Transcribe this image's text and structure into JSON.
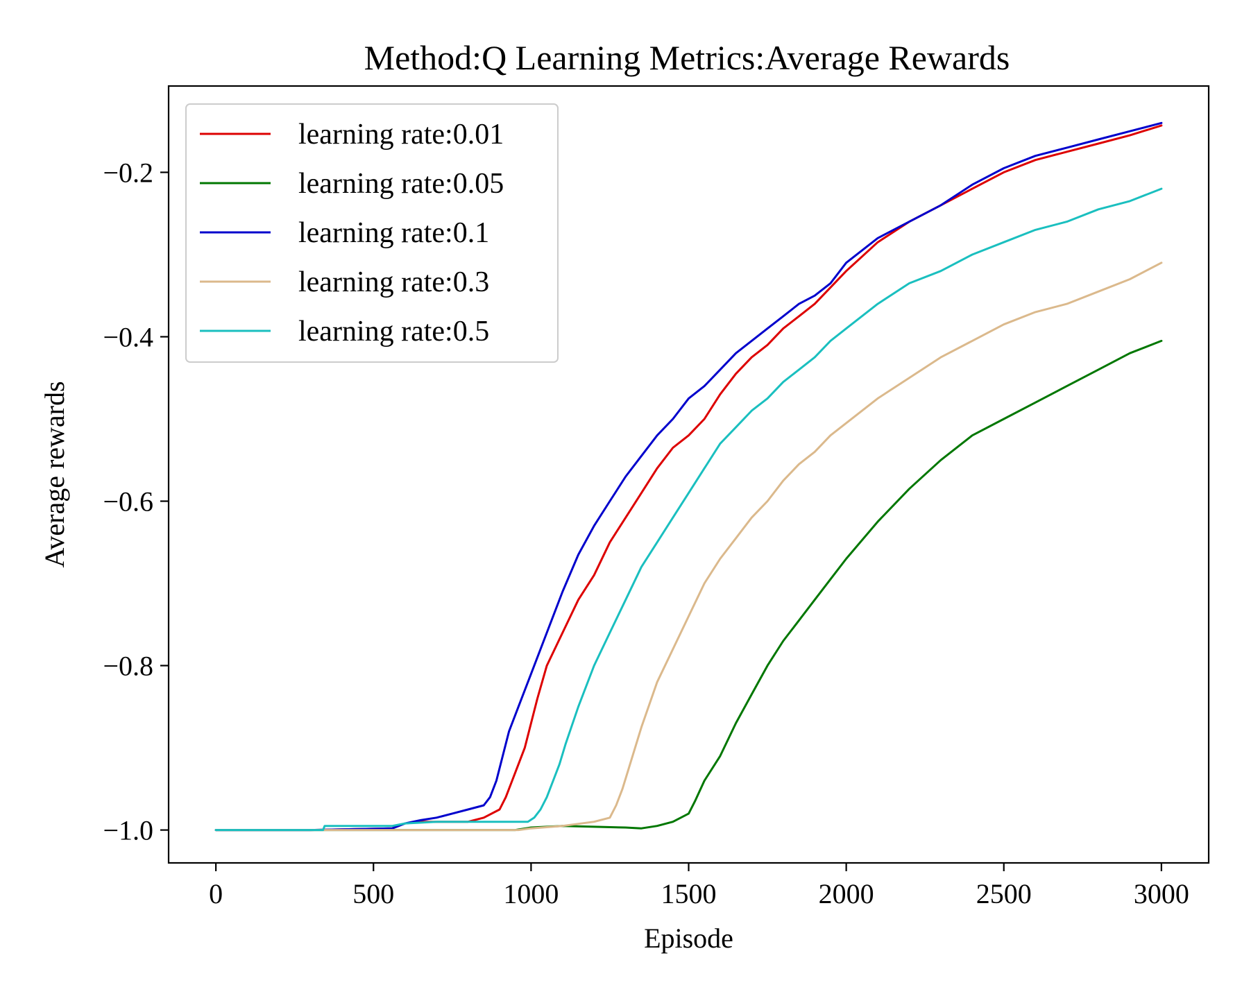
{
  "chart_data": {
    "type": "line",
    "title": "Method:Q Learning   Metrics:Average Rewards",
    "xlabel": "Episode",
    "ylabel": "Average rewards",
    "xlim": [
      -150,
      3150
    ],
    "ylim": [
      -1.04,
      -0.095
    ],
    "xticks": [
      0,
      500,
      1000,
      1500,
      2000,
      2500,
      3000
    ],
    "xtick_labels": [
      "0",
      "500",
      "1000",
      "1500",
      "2000",
      "2500",
      "3000"
    ],
    "yticks": [
      -1.0,
      -0.8,
      -0.6,
      -0.4,
      -0.2
    ],
    "ytick_labels": [
      "−1.0",
      "−0.8",
      "−0.6",
      "−0.4",
      "−0.2"
    ],
    "grid": false,
    "legend_position": "top-left",
    "series": [
      {
        "name": "learning rate:0.01",
        "color": "#dd0000",
        "x": [
          0,
          300,
          560,
          600,
          650,
          700,
          750,
          800,
          850,
          900,
          920,
          940,
          960,
          980,
          1000,
          1020,
          1050,
          1100,
          1150,
          1200,
          1250,
          1300,
          1350,
          1400,
          1450,
          1500,
          1550,
          1600,
          1650,
          1700,
          1750,
          1800,
          1850,
          1900,
          1950,
          2000,
          2100,
          2200,
          2300,
          2400,
          2500,
          2600,
          2700,
          2800,
          2900,
          3000
        ],
        "y": [
          -1.0,
          -1.0,
          -0.998,
          -0.992,
          -0.99,
          -0.99,
          -0.99,
          -0.99,
          -0.985,
          -0.975,
          -0.96,
          -0.94,
          -0.92,
          -0.9,
          -0.87,
          -0.84,
          -0.8,
          -0.76,
          -0.72,
          -0.69,
          -0.65,
          -0.62,
          -0.59,
          -0.56,
          -0.535,
          -0.52,
          -0.5,
          -0.47,
          -0.445,
          -0.425,
          -0.41,
          -0.39,
          -0.375,
          -0.36,
          -0.34,
          -0.32,
          -0.285,
          -0.26,
          -0.24,
          -0.22,
          -0.2,
          -0.185,
          -0.175,
          -0.165,
          -0.155,
          -0.143
        ]
      },
      {
        "name": "learning rate:0.05",
        "color": "#007700",
        "x": [
          0,
          950,
          1000,
          1100,
          1200,
          1300,
          1350,
          1400,
          1450,
          1500,
          1520,
          1550,
          1600,
          1650,
          1700,
          1750,
          1800,
          1850,
          1900,
          1950,
          2000,
          2100,
          2200,
          2300,
          2400,
          2500,
          2600,
          2700,
          2800,
          2900,
          3000
        ],
        "y": [
          -1.0,
          -1.0,
          -0.997,
          -0.995,
          -0.996,
          -0.997,
          -0.998,
          -0.995,
          -0.99,
          -0.98,
          -0.965,
          -0.94,
          -0.91,
          -0.87,
          -0.835,
          -0.8,
          -0.77,
          -0.745,
          -0.72,
          -0.695,
          -0.67,
          -0.625,
          -0.585,
          -0.55,
          -0.52,
          -0.5,
          -0.48,
          -0.46,
          -0.44,
          -0.42,
          -0.405
        ]
      },
      {
        "name": "learning rate:0.1",
        "color": "#0000cc",
        "x": [
          0,
          300,
          560,
          600,
          650,
          700,
          750,
          800,
          850,
          870,
          890,
          910,
          930,
          960,
          1000,
          1050,
          1100,
          1150,
          1200,
          1250,
          1300,
          1350,
          1400,
          1450,
          1500,
          1550,
          1600,
          1650,
          1700,
          1750,
          1800,
          1850,
          1900,
          1950,
          2000,
          2100,
          2200,
          2300,
          2400,
          2500,
          2600,
          2700,
          2800,
          2900,
          3000
        ],
        "y": [
          -1.0,
          -1.0,
          -0.998,
          -0.992,
          -0.988,
          -0.985,
          -0.98,
          -0.975,
          -0.97,
          -0.96,
          -0.94,
          -0.91,
          -0.88,
          -0.85,
          -0.81,
          -0.76,
          -0.71,
          -0.665,
          -0.63,
          -0.6,
          -0.57,
          -0.545,
          -0.52,
          -0.5,
          -0.475,
          -0.46,
          -0.44,
          -0.42,
          -0.405,
          -0.39,
          -0.375,
          -0.36,
          -0.35,
          -0.335,
          -0.31,
          -0.28,
          -0.26,
          -0.24,
          -0.215,
          -0.195,
          -0.18,
          -0.17,
          -0.16,
          -0.15,
          -0.14
        ]
      },
      {
        "name": "learning rate:0.3",
        "color": "#dbb98c",
        "x": [
          0,
          340,
          960,
          1000,
          1100,
          1200,
          1250,
          1270,
          1290,
          1310,
          1330,
          1350,
          1400,
          1450,
          1500,
          1550,
          1600,
          1650,
          1700,
          1750,
          1800,
          1850,
          1900,
          1950,
          2000,
          2100,
          2200,
          2300,
          2400,
          2500,
          2600,
          2700,
          2800,
          2900,
          3000
        ],
        "y": [
          -1.0,
          -1.0,
          -1.0,
          -0.998,
          -0.995,
          -0.99,
          -0.985,
          -0.97,
          -0.95,
          -0.925,
          -0.9,
          -0.875,
          -0.82,
          -0.78,
          -0.74,
          -0.7,
          -0.67,
          -0.645,
          -0.62,
          -0.6,
          -0.575,
          -0.555,
          -0.54,
          -0.52,
          -0.505,
          -0.475,
          -0.45,
          -0.425,
          -0.405,
          -0.385,
          -0.37,
          -0.36,
          -0.345,
          -0.33,
          -0.31
        ]
      },
      {
        "name": "learning rate:0.5",
        "color": "#1abfbf",
        "x": [
          0,
          340,
          345,
          560,
          600,
          700,
          800,
          900,
          990,
          1010,
          1030,
          1050,
          1070,
          1090,
          1110,
          1150,
          1200,
          1250,
          1300,
          1350,
          1400,
          1450,
          1500,
          1550,
          1600,
          1650,
          1700,
          1750,
          1800,
          1850,
          1900,
          1950,
          2000,
          2100,
          2200,
          2300,
          2400,
          2500,
          2600,
          2700,
          2800,
          2900,
          3000
        ],
        "y": [
          -1.0,
          -1.0,
          -0.995,
          -0.995,
          -0.992,
          -0.99,
          -0.99,
          -0.99,
          -0.99,
          -0.985,
          -0.975,
          -0.96,
          -0.94,
          -0.92,
          -0.895,
          -0.85,
          -0.8,
          -0.76,
          -0.72,
          -0.68,
          -0.65,
          -0.62,
          -0.59,
          -0.56,
          -0.53,
          -0.51,
          -0.49,
          -0.475,
          -0.455,
          -0.44,
          -0.425,
          -0.405,
          -0.39,
          -0.36,
          -0.335,
          -0.32,
          -0.3,
          -0.285,
          -0.27,
          -0.26,
          -0.245,
          -0.235,
          -0.22
        ]
      }
    ]
  }
}
